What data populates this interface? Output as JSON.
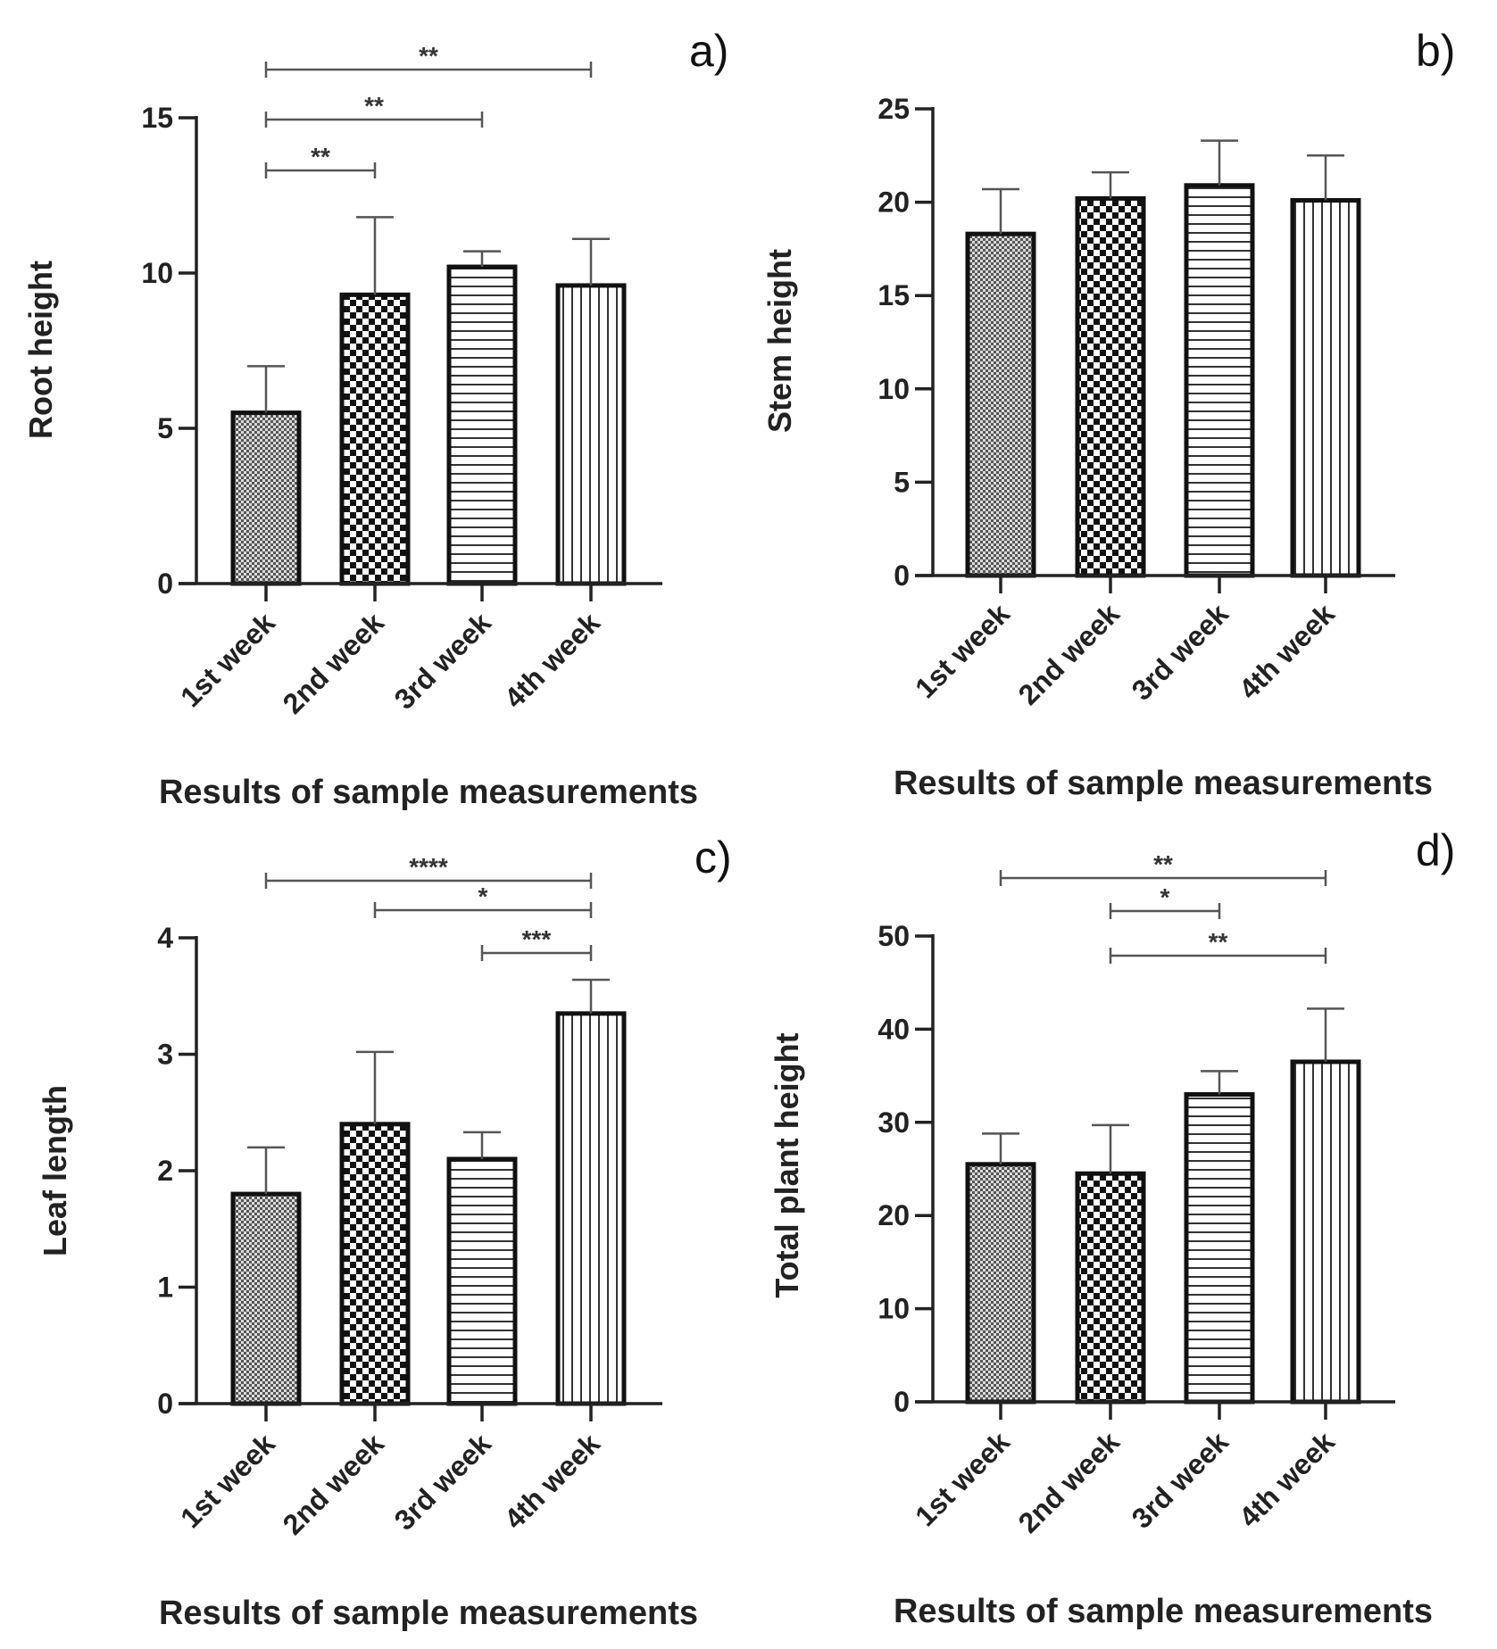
{
  "figure": {
    "xlabel": "Results of sample measurements"
  },
  "colors": {
    "axis": "#222222",
    "bar_edge": "#111111",
    "error_bar": "#555555",
    "bracket": "#555555"
  },
  "chart_data": [
    {
      "type": "bar",
      "panel": "a)",
      "ylabel": "Root height",
      "xlabel": "Results of sample measurements",
      "categories": [
        "1st week",
        "2nd week",
        "3rd week",
        "4th week"
      ],
      "values": [
        5.5,
        9.3,
        10.2,
        9.6
      ],
      "errors": [
        1.5,
        2.5,
        0.5,
        1.5
      ],
      "patterns": [
        "dots",
        "checker",
        "hlines",
        "vlines"
      ],
      "ylim": [
        0,
        15
      ],
      "yticks": [
        0,
        5,
        10,
        15
      ],
      "significance": [
        {
          "from": 0,
          "to": 1,
          "label": "**"
        },
        {
          "from": 0,
          "to": 2,
          "label": "**"
        },
        {
          "from": 0,
          "to": 3,
          "label": "**"
        }
      ]
    },
    {
      "type": "bar",
      "panel": "b)",
      "ylabel": "Stem height",
      "xlabel": "Results of sample measurements",
      "categories": [
        "1st week",
        "2nd week",
        "3rd week",
        "4th week"
      ],
      "values": [
        18.3,
        20.2,
        20.9,
        20.1
      ],
      "errors": [
        2.4,
        1.4,
        2.4,
        2.4
      ],
      "patterns": [
        "dots",
        "checker",
        "hlines",
        "vlines"
      ],
      "ylim": [
        0,
        25
      ],
      "yticks": [
        0,
        5,
        10,
        15,
        20,
        25
      ],
      "significance": []
    },
    {
      "type": "bar",
      "panel": "c)",
      "ylabel": "Leaf length",
      "xlabel": "Results of sample measurements",
      "categories": [
        "1st week",
        "2nd week",
        "3rd week",
        "4th week"
      ],
      "values": [
        1.8,
        2.4,
        2.1,
        3.35
      ],
      "errors": [
        0.4,
        0.62,
        0.23,
        0.29
      ],
      "patterns": [
        "dots",
        "checker",
        "hlines",
        "vlines"
      ],
      "ylim": [
        0,
        4
      ],
      "yticks": [
        0,
        1,
        2,
        3,
        4
      ],
      "significance": [
        {
          "from": 2,
          "to": 3,
          "label": "***"
        },
        {
          "from": 1,
          "to": 3,
          "label": "*"
        },
        {
          "from": 0,
          "to": 3,
          "label": "****"
        }
      ]
    },
    {
      "type": "bar",
      "panel": "d)",
      "ylabel": "Total plant height",
      "xlabel": "Results of sample measurements",
      "categories": [
        "1st week",
        "2nd week",
        "3rd week",
        "4th week"
      ],
      "values": [
        25.5,
        24.5,
        33,
        36.5
      ],
      "errors": [
        3.3,
        5.2,
        2.5,
        5.7
      ],
      "patterns": [
        "dots",
        "checker",
        "hlines",
        "vlines"
      ],
      "ylim": [
        0,
        50
      ],
      "yticks": [
        0,
        10,
        20,
        30,
        40,
        50
      ],
      "significance": [
        {
          "from": 1,
          "to": 3,
          "label": "**"
        },
        {
          "from": 1,
          "to": 2,
          "label": "*"
        },
        {
          "from": 0,
          "to": 3,
          "label": "**"
        }
      ]
    }
  ]
}
